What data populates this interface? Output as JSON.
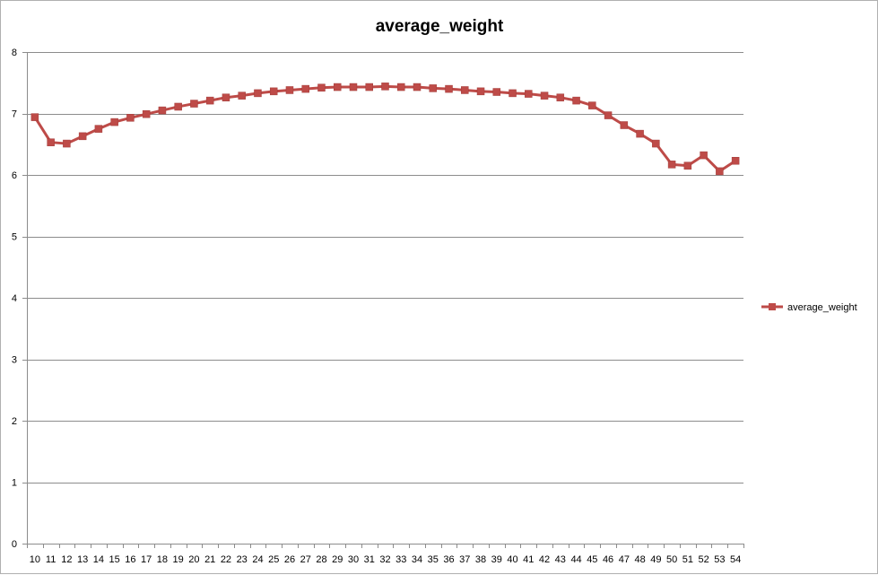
{
  "chart_data": {
    "type": "line",
    "title": "average_weight",
    "xlabel": "",
    "ylabel": "",
    "ylim": [
      0,
      8
    ],
    "yticks": [
      "0",
      "1",
      "2",
      "3",
      "4",
      "5",
      "6",
      "7",
      "8"
    ],
    "grid": true,
    "legend_position": "right",
    "categories": [
      "10",
      "11",
      "12",
      "13",
      "14",
      "15",
      "16",
      "17",
      "18",
      "19",
      "20",
      "21",
      "22",
      "23",
      "24",
      "25",
      "26",
      "27",
      "28",
      "29",
      "30",
      "31",
      "32",
      "33",
      "34",
      "35",
      "36",
      "37",
      "38",
      "39",
      "40",
      "41",
      "42",
      "43",
      "44",
      "45",
      "46",
      "47",
      "48",
      "49",
      "50",
      "51",
      "52",
      "53",
      "54"
    ],
    "series": [
      {
        "name": "average_weight",
        "color": "#be4b48",
        "values": [
          6.94,
          6.53,
          6.51,
          6.63,
          6.75,
          6.86,
          6.93,
          6.99,
          7.05,
          7.11,
          7.16,
          7.21,
          7.26,
          7.29,
          7.33,
          7.36,
          7.38,
          7.4,
          7.42,
          7.43,
          7.43,
          7.43,
          7.44,
          7.43,
          7.43,
          7.41,
          7.4,
          7.38,
          7.36,
          7.35,
          7.33,
          7.32,
          7.29,
          7.26,
          7.21,
          7.13,
          6.97,
          6.81,
          6.67,
          6.51,
          6.17,
          6.15,
          6.32,
          6.06,
          6.23
        ]
      }
    ]
  }
}
